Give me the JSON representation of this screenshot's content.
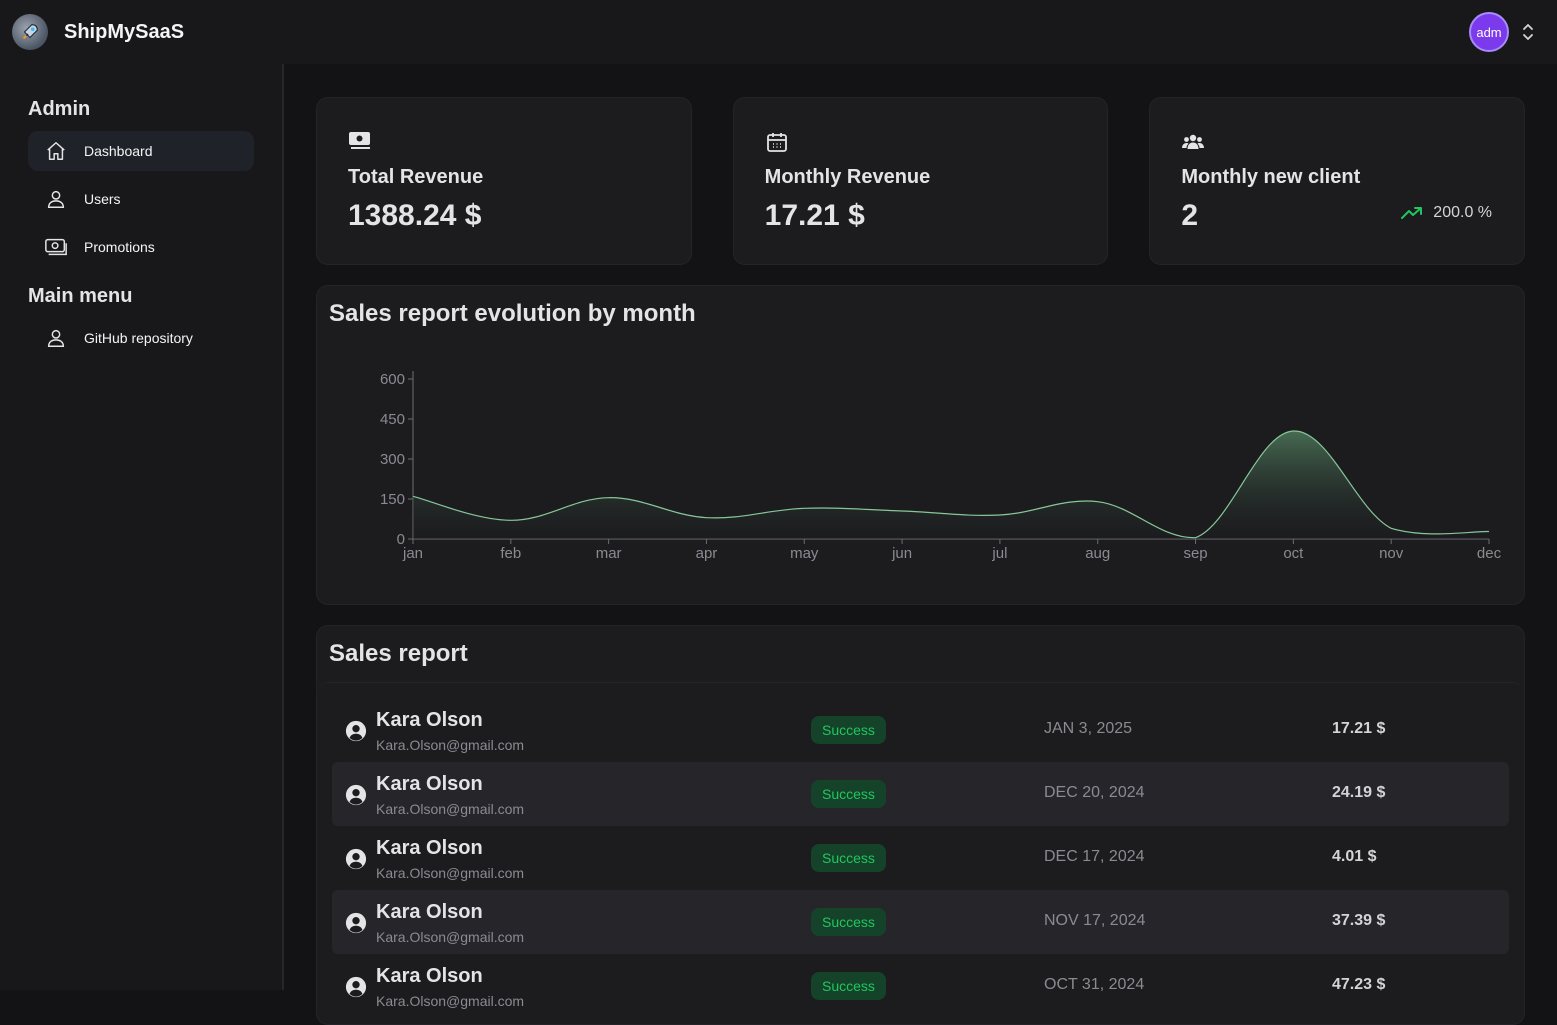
{
  "app": {
    "brand": "ShipMySaaS",
    "avatar_text": "adm"
  },
  "sidebar": {
    "sections": [
      {
        "title": "Admin"
      },
      {
        "title": "Main menu"
      }
    ],
    "items": [
      {
        "label": "Dashboard",
        "icon": "home-icon",
        "active": true
      },
      {
        "label": "Users",
        "icon": "user-icon"
      },
      {
        "label": "Promotions",
        "icon": "money-icon"
      },
      {
        "label": "GitHub repository",
        "icon": "user-icon"
      }
    ]
  },
  "cards": [
    {
      "title": "Total Revenue",
      "value": "1388.24 $",
      "icon": "money-icon"
    },
    {
      "title": "Monthly Revenue",
      "value": "17.21 $",
      "icon": "calendar-icon"
    },
    {
      "title": "Monthly new client",
      "value": "2",
      "icon": "users-icon",
      "trend": "200.0 %"
    }
  ],
  "chart_title": "Sales report evolution by month",
  "chart_data": {
    "type": "area",
    "categories": [
      "jan",
      "feb",
      "mar",
      "apr",
      "may",
      "jun",
      "jul",
      "aug",
      "sep",
      "oct",
      "nov",
      "dec"
    ],
    "values": [
      160,
      70,
      155,
      80,
      115,
      105,
      90,
      140,
      5,
      405,
      40,
      28
    ],
    "yticks": [
      0,
      150,
      300,
      450,
      600
    ],
    "ylim": [
      0,
      600
    ],
    "line_color": "#86c79a"
  },
  "table": {
    "title": "Sales report",
    "rows": [
      {
        "name": "Kara Olson",
        "email": "Kara.Olson@gmail.com",
        "status": "Success",
        "date": "JAN 3, 2025",
        "amount": "17.21 $"
      },
      {
        "name": "Kara Olson",
        "email": "Kara.Olson@gmail.com",
        "status": "Success",
        "date": "DEC 20, 2024",
        "amount": "24.19 $"
      },
      {
        "name": "Kara Olson",
        "email": "Kara.Olson@gmail.com",
        "status": "Success",
        "date": "DEC 17, 2024",
        "amount": "4.01 $"
      },
      {
        "name": "Kara Olson",
        "email": "Kara.Olson@gmail.com",
        "status": "Success",
        "date": "NOV 17, 2024",
        "amount": "37.39 $"
      },
      {
        "name": "Kara Olson",
        "email": "Kara.Olson@gmail.com",
        "status": "Success",
        "date": "OCT 31, 2024",
        "amount": "47.23 $"
      }
    ]
  }
}
